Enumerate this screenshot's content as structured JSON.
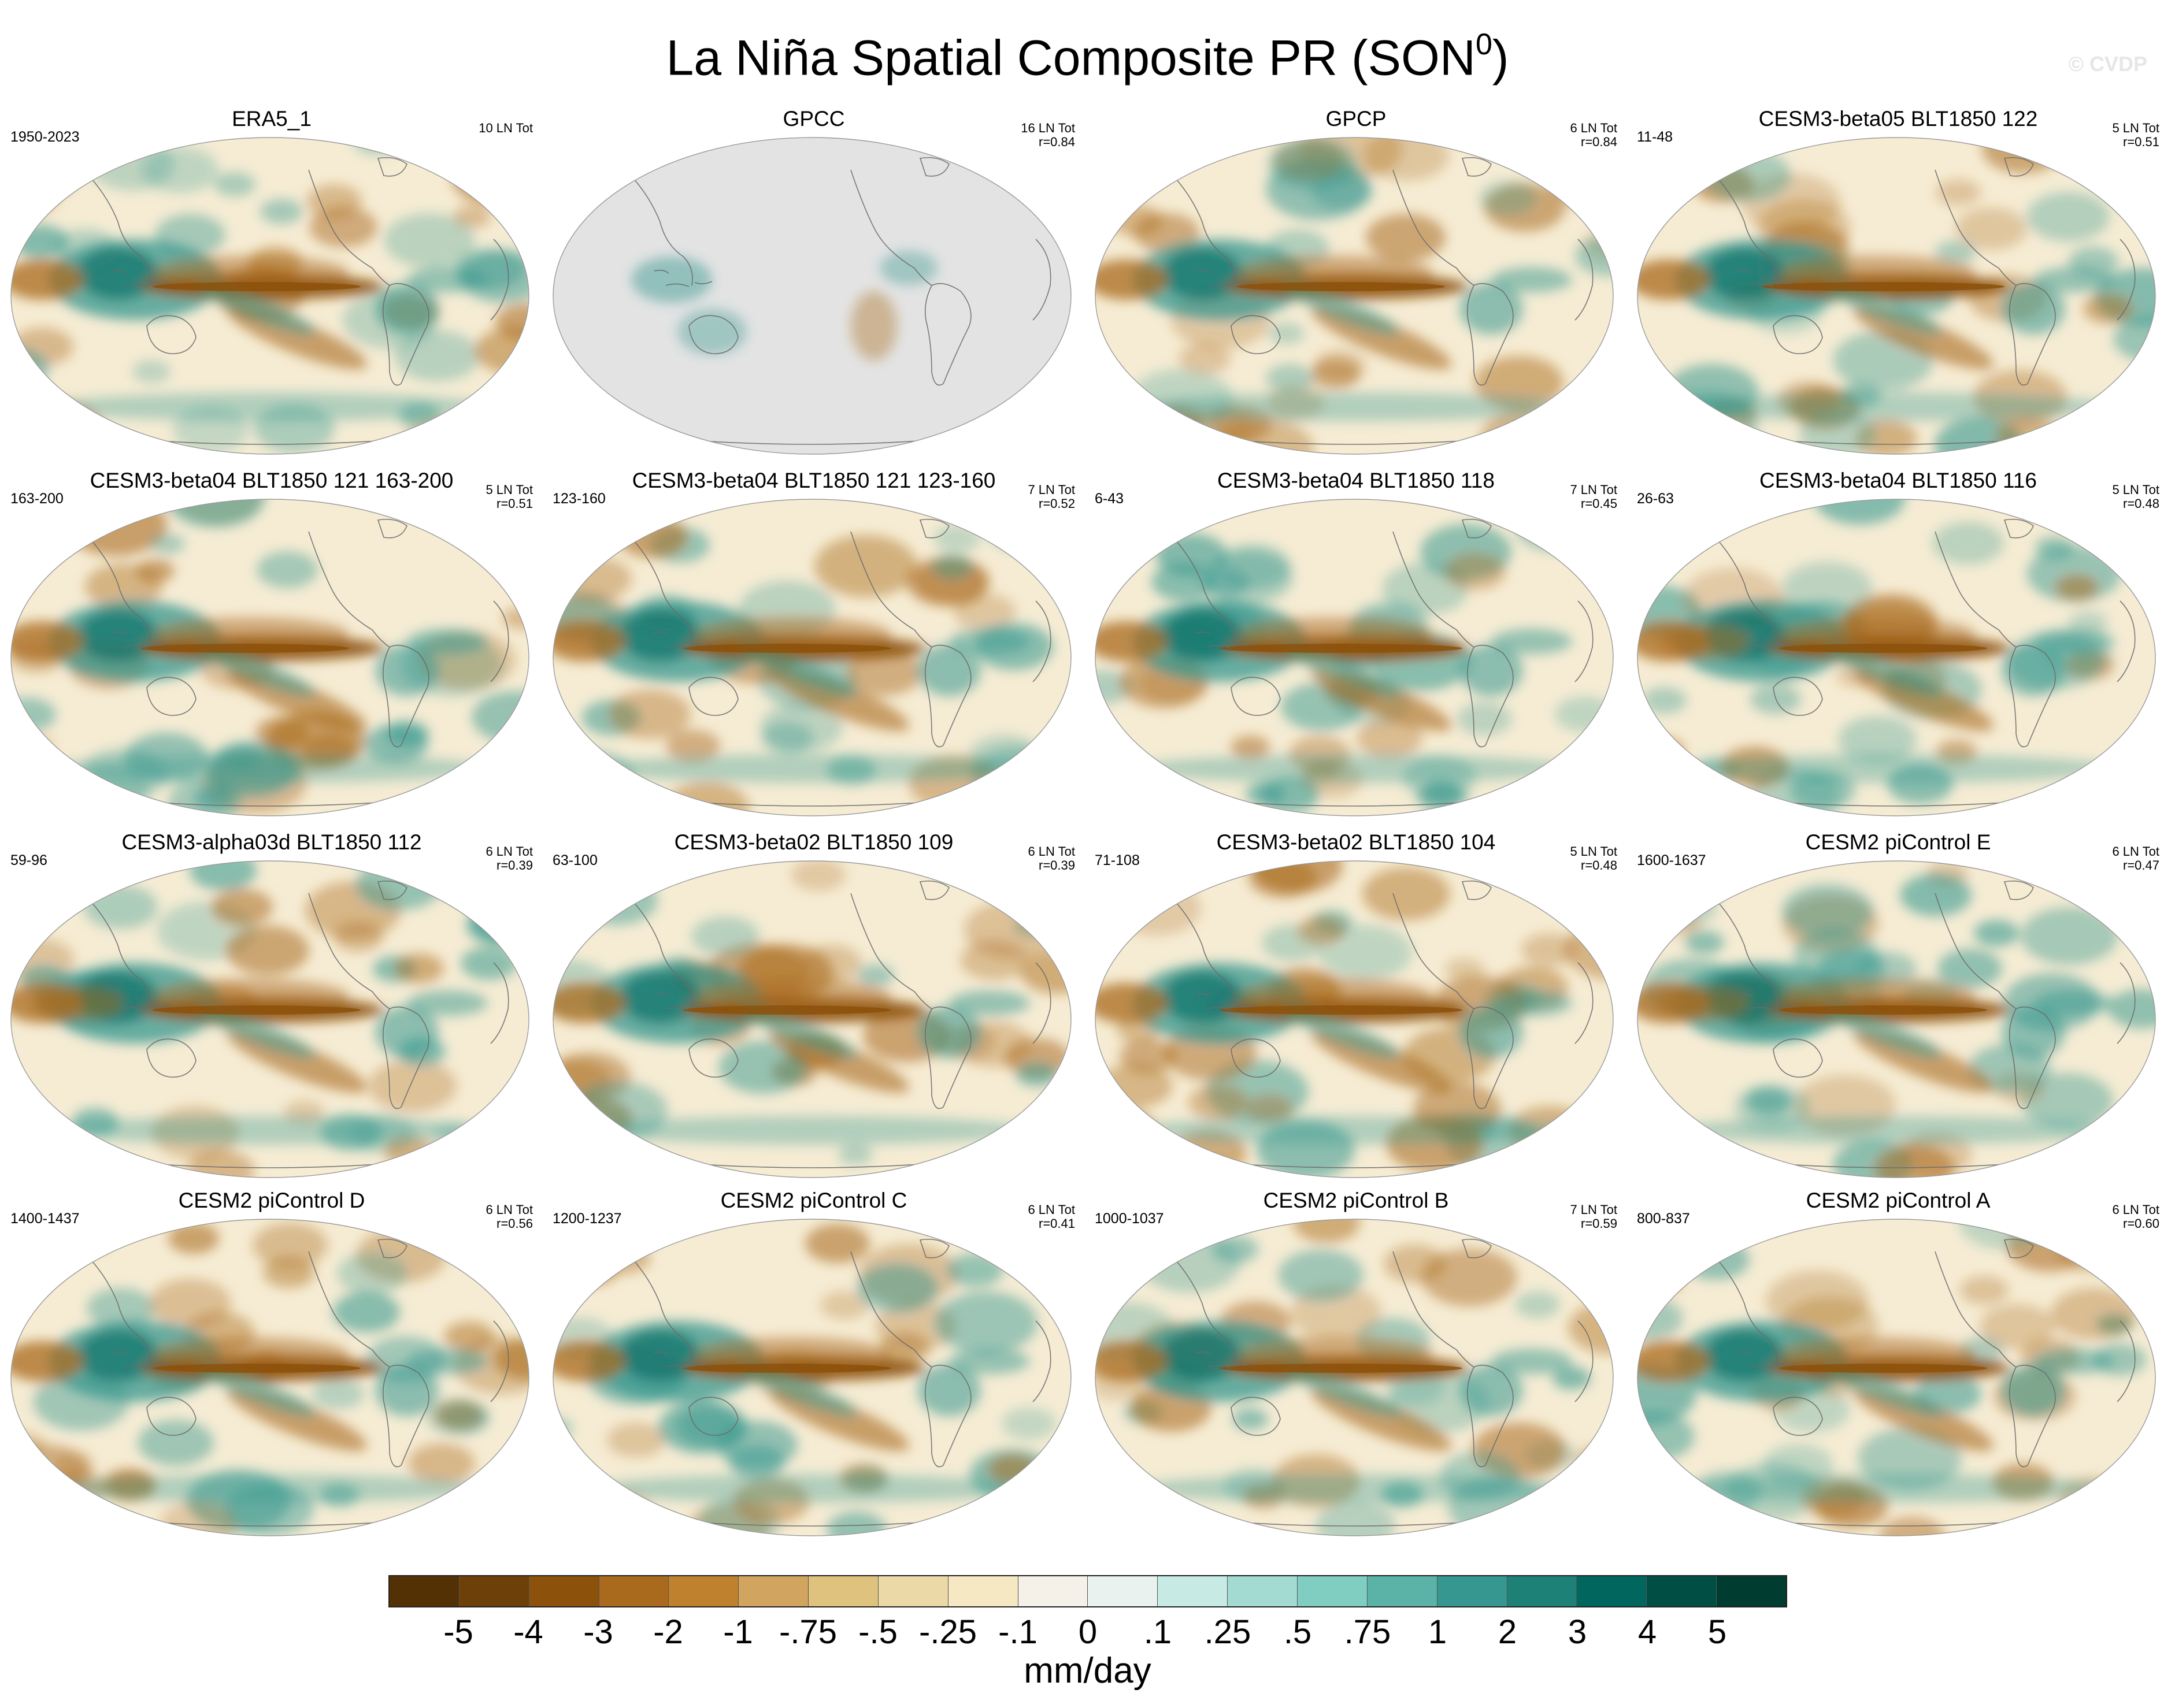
{
  "title": {
    "main": "La Niña Spatial Composite PR (SON",
    "superscript": "0",
    "suffix": ")"
  },
  "watermark": "© CVDP",
  "panels": [
    {
      "title": "ERA5_1",
      "left_text": "1950-2023",
      "right_line1": "10 LN Tot",
      "right_line2": "",
      "land_masked": false,
      "pattern": "obs"
    },
    {
      "title": "GPCC",
      "left_text": "",
      "right_line1": "16 LN Tot",
      "right_line2": "r=0.84",
      "land_masked": true,
      "pattern": "gpcc"
    },
    {
      "title": "GPCP",
      "left_text": "",
      "right_line1": "6 LN Tot",
      "right_line2": "r=0.84",
      "land_masked": false,
      "pattern": "obs"
    },
    {
      "title": "CESM3-beta05 BLT1850 122",
      "left_text": "11-48",
      "right_line1": "5 LN Tot",
      "right_line2": "r=0.51",
      "land_masked": false,
      "pattern": "a"
    },
    {
      "title": "CESM3-beta04 BLT1850 121 163-200",
      "left_text": "163-200",
      "right_line1": "5 LN Tot",
      "right_line2": "r=0.51",
      "land_masked": false,
      "pattern": "b"
    },
    {
      "title": "CESM3-beta04 BLT1850 121 123-160",
      "left_text": "123-160",
      "right_line1": "7 LN Tot",
      "right_line2": "r=0.52",
      "land_masked": false,
      "pattern": "b"
    },
    {
      "title": "CESM3-beta04 BLT1850 118",
      "left_text": "6-43",
      "right_line1": "7 LN Tot",
      "right_line2": "r=0.45",
      "land_masked": false,
      "pattern": "a"
    },
    {
      "title": "CESM3-beta04 BLT1850 116",
      "left_text": "26-63",
      "right_line1": "5 LN Tot",
      "right_line2": "r=0.48",
      "land_masked": false,
      "pattern": "c"
    },
    {
      "title": "CESM3-alpha03d BLT1850 112",
      "left_text": "59-96",
      "right_line1": "6 LN Tot",
      "right_line2": "r=0.39",
      "land_masked": false,
      "pattern": "c"
    },
    {
      "title": "CESM3-beta02 BLT1850 109",
      "left_text": "63-100",
      "right_line1": "6 LN Tot",
      "right_line2": "r=0.39",
      "land_masked": false,
      "pattern": "b"
    },
    {
      "title": "CESM3-beta02 BLT1850 104",
      "left_text": "71-108",
      "right_line1": "5 LN Tot",
      "right_line2": "r=0.48",
      "land_masked": false,
      "pattern": "a"
    },
    {
      "title": "CESM2 piControl E",
      "left_text": "1600-1637",
      "right_line1": "6 LN Tot",
      "right_line2": "r=0.47",
      "land_masked": false,
      "pattern": "c"
    },
    {
      "title": "CESM2 piControl D",
      "left_text": "1400-1437",
      "right_line1": "6 LN Tot",
      "right_line2": "r=0.56",
      "land_masked": false,
      "pattern": "obs"
    },
    {
      "title": "CESM2 piControl C",
      "left_text": "1200-1237",
      "right_line1": "6 LN Tot",
      "right_line2": "r=0.41",
      "land_masked": false,
      "pattern": "b"
    },
    {
      "title": "CESM2 piControl B",
      "left_text": "1000-1037",
      "right_line1": "7 LN Tot",
      "right_line2": "r=0.59",
      "land_masked": false,
      "pattern": "a"
    },
    {
      "title": "CESM2 piControl A",
      "left_text": "800-837",
      "right_line1": "6 LN Tot",
      "right_line2": "r=0.60",
      "land_masked": false,
      "pattern": "obs"
    }
  ],
  "colorbar": {
    "colors": [
      "#543005",
      "#6e4009",
      "#8c510a",
      "#a96a1d",
      "#bf812d",
      "#d1a55f",
      "#dfc27d",
      "#ecd9a8",
      "#f6e8c3",
      "#f5f1e8",
      "#eaf2f0",
      "#c7eae5",
      "#a3dbd3",
      "#80cdc1",
      "#5bb3a8",
      "#35978f",
      "#1d8177",
      "#01665e",
      "#014f44",
      "#003c30"
    ],
    "labels": [
      "-5",
      "-4",
      "-3",
      "-2",
      "-1",
      "-.75",
      "-.5",
      "-.25",
      "-.1",
      "0",
      ".1",
      ".25",
      ".5",
      ".75",
      "1",
      "2",
      "3",
      "4",
      "5"
    ],
    "units": "mm/day"
  },
  "colors": {
    "land_mask": "#e3e3e3",
    "background_tan": "#f6ecd4",
    "dry": "#a96a1d",
    "dry_strong": "#8c510a",
    "wet": "#35978f",
    "wet_strong": "#01665e",
    "coast": "#6b6b6b"
  }
}
